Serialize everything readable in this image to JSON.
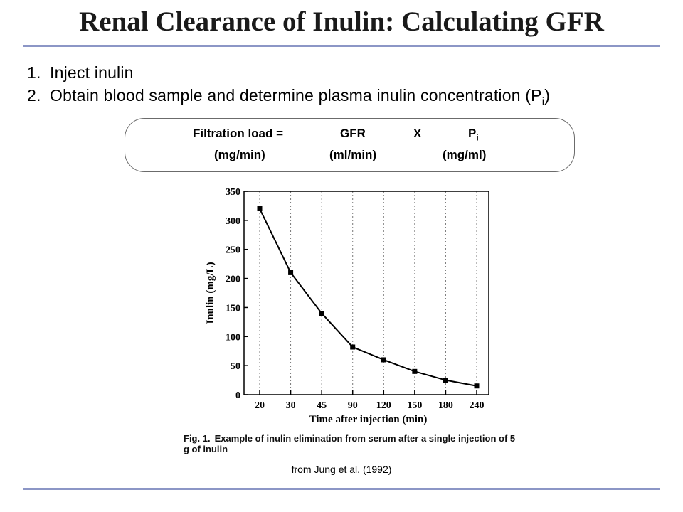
{
  "slide": {
    "title": "Renal Clearance of Inulin: Calculating GFR",
    "steps": [
      {
        "num": "1.",
        "text": "Inject inulin"
      },
      {
        "num": "2.",
        "text": "Obtain blood sample and determine plasma inulin concentration (P",
        "sub": "i",
        "after": ")"
      }
    ],
    "formula": {
      "label": "Filtration load =",
      "gfr": "GFR",
      "times": "X",
      "p": "P",
      "p_sub": "i",
      "unit_load": "(mg/min)",
      "unit_gfr": "(ml/min)",
      "unit_p": "(mg/ml)"
    },
    "caption_label": "Fig. 1.",
    "caption_text": "Example of inulin elimination from serum after a single injection of 5 g of inulin",
    "credit": "from Jung et al. (1992)",
    "rule_color": "#8c96c6"
  },
  "chart_data": {
    "type": "line",
    "xlabel": "Time after injection (min)",
    "ylabel": "Inulin (mg/L)",
    "categories": [
      "20",
      "30",
      "45",
      "90",
      "120",
      "150",
      "180",
      "240"
    ],
    "values": [
      320,
      210,
      140,
      82,
      60,
      40,
      25,
      15
    ],
    "ylim": [
      0,
      350
    ],
    "yticks": [
      0,
      50,
      100,
      150,
      200,
      250,
      300,
      350
    ],
    "grid": "dashed vertical gridlines at each category"
  }
}
